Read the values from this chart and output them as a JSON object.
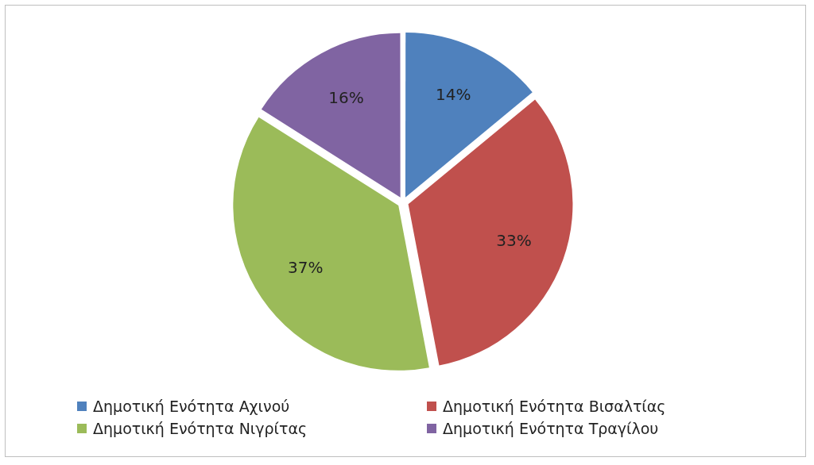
{
  "chart_data": {
    "type": "pie",
    "categories": [
      "Δημοτική Ενότητα Αχινού",
      "Δημοτική Ενότητα Βισαλτίας",
      "Δημοτική Ενότητα Νιγρίτας",
      "Δημοτική Ενότητα Τραγίλου"
    ],
    "values": [
      14,
      33,
      37,
      16
    ],
    "value_labels": [
      "14%",
      "33%",
      "37%",
      "16%"
    ],
    "colors": [
      "#4f81bd",
      "#c0504d",
      "#9bbb59",
      "#8064a2"
    ],
    "legend": "bottom"
  }
}
